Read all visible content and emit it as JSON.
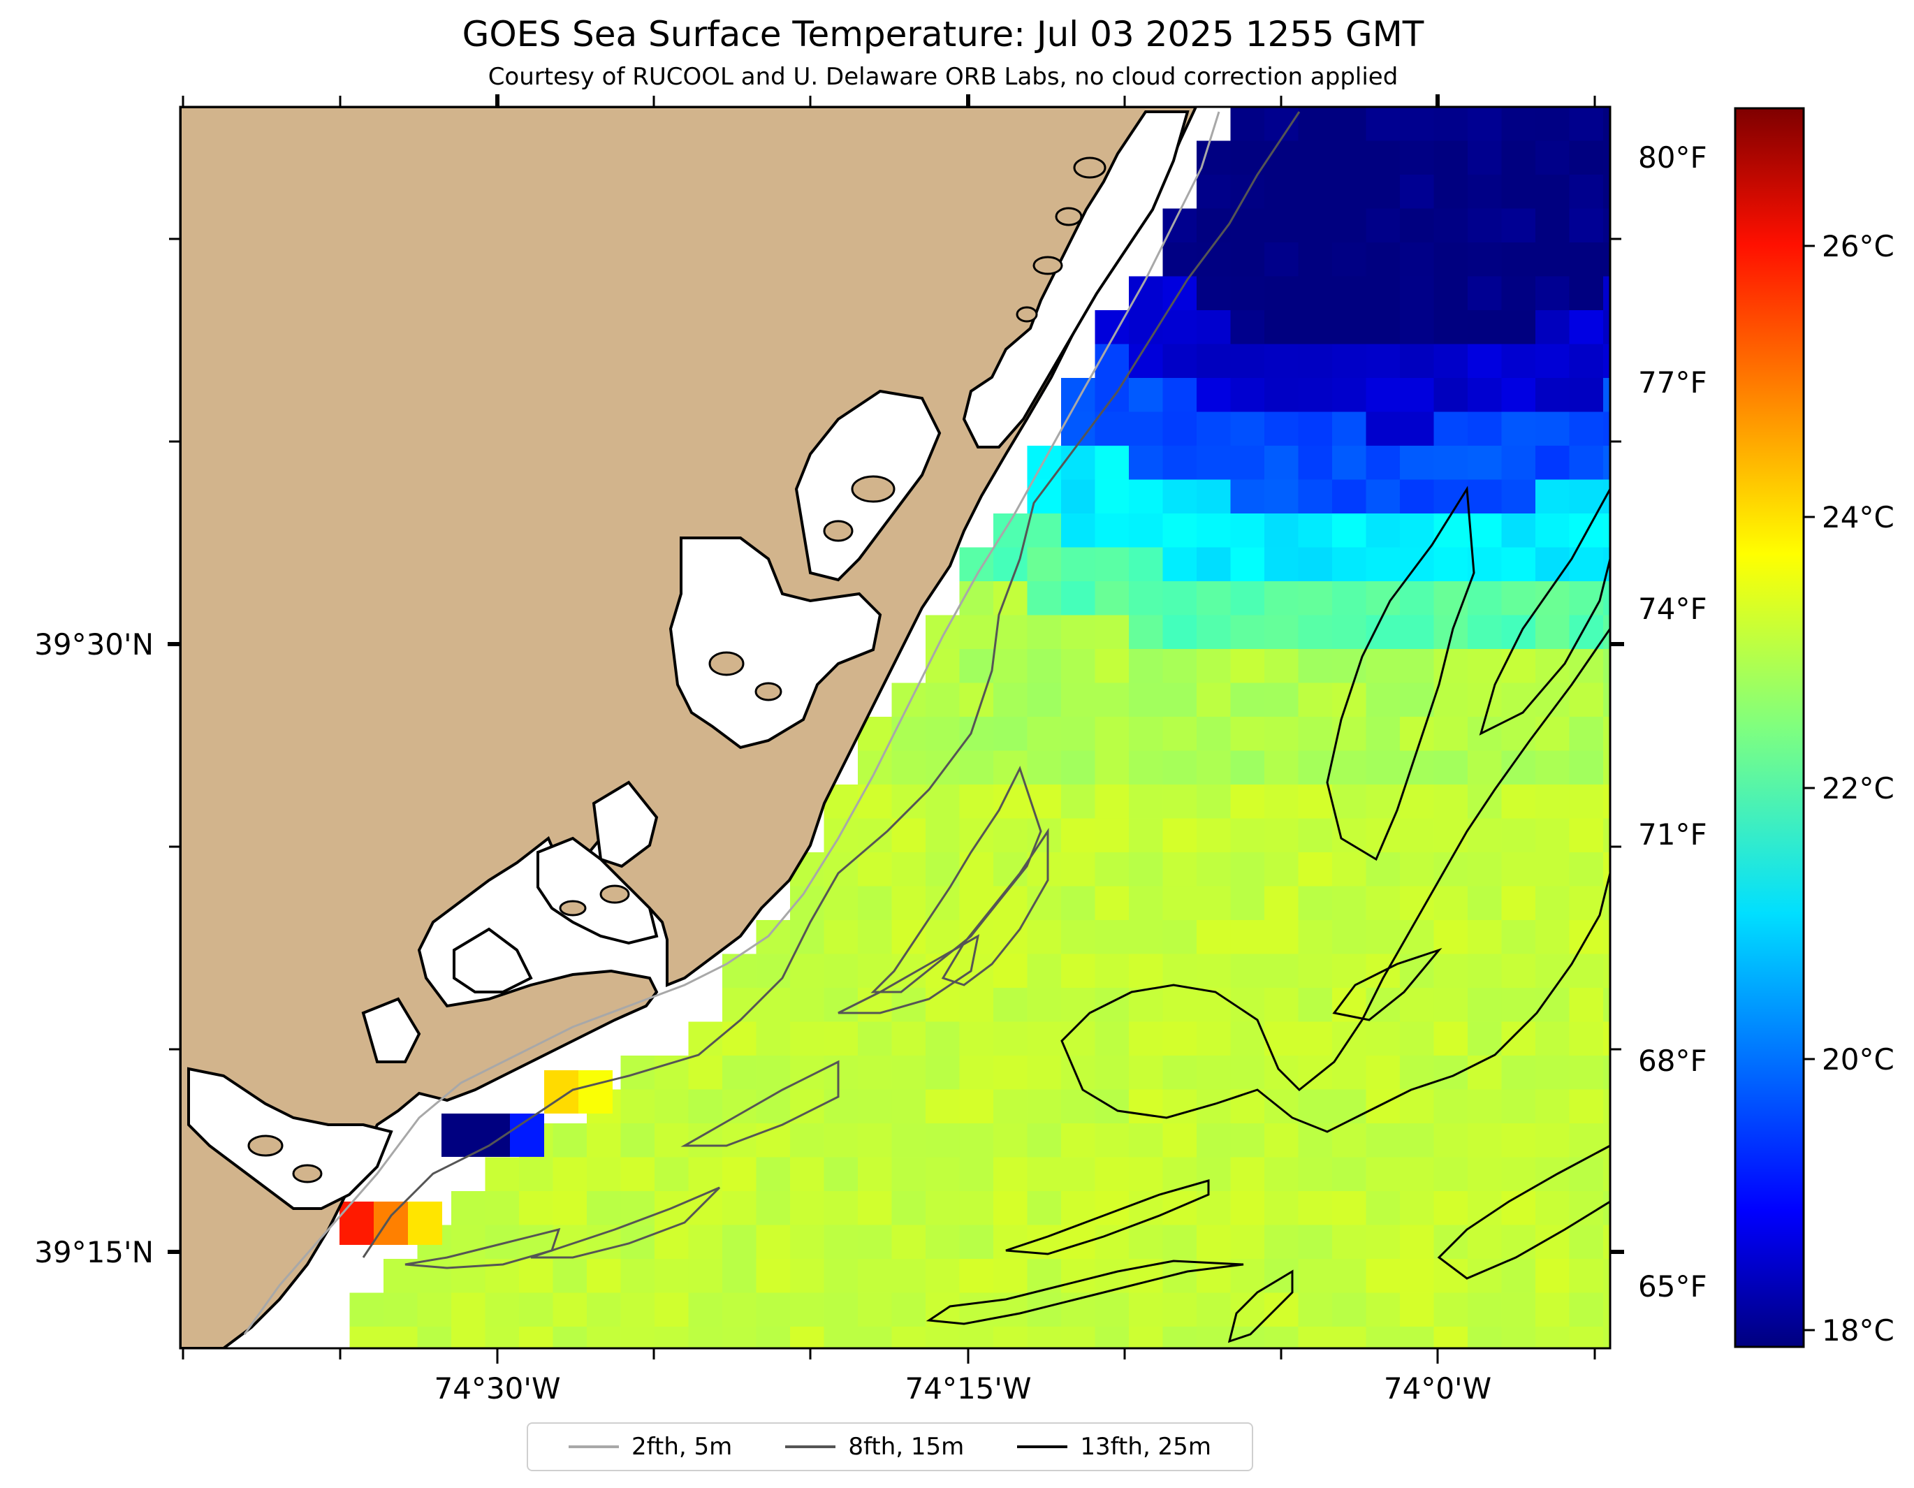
{
  "title": "GOES Sea Surface Temperature: Jul 03 2025 1255 GMT",
  "subtitle": "Courtesy of RUCOOL and U. Delaware ORB Labs, no cloud correction applied",
  "axes": {
    "x_ticks": [
      "74°30'W",
      "74°15'W",
      "74°0'W"
    ],
    "y_ticks": [
      "39°30'N",
      "39°15'N"
    ]
  },
  "colorbar": {
    "celsius_ticks": [
      "26°C",
      "24°C",
      "22°C",
      "20°C",
      "18°C"
    ],
    "fahrenheit_ticks": [
      "80°F",
      "77°F",
      "74°F",
      "71°F",
      "68°F",
      "65°F"
    ],
    "range_celsius": [
      17.6,
      27.2
    ],
    "colormap": "jet"
  },
  "legend": [
    {
      "label": "2fth, 5m",
      "color": "#a8a8a8"
    },
    {
      "label": "8fth, 15m",
      "color": "#555555"
    },
    {
      "label": "13fth, 25m",
      "color": "#000000"
    }
  ],
  "colors": {
    "land": "#d2b48c",
    "coastline": "#000000",
    "no_data": "#ffffff"
  }
}
